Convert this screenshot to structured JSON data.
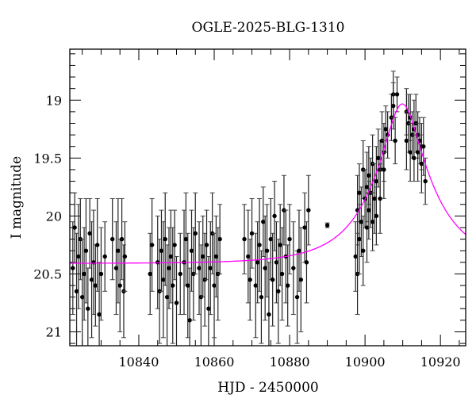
{
  "chart_data": {
    "type": "scatter",
    "title": "OGLE-2025-BLG-1310",
    "xlabel": "HJD - 2450000",
    "ylabel": "I magnitude",
    "xlim": [
      10821.7,
      10926.7
    ],
    "ylim": [
      21.12,
      18.56
    ],
    "y_inverted": true,
    "x_ticks": [
      10840,
      10860,
      10880,
      10900,
      10920
    ],
    "x_tick_labels": [
      "10840",
      "10860",
      "10880",
      "10900",
      "10920"
    ],
    "y_ticks": [
      19,
      19.5,
      20,
      20.5,
      21
    ],
    "y_tick_labels": [
      "19",
      "19.5",
      "20",
      "20.5",
      "21"
    ],
    "grid": false,
    "colors": {
      "points": "#000000",
      "model": "#ff00ff"
    },
    "model": {
      "type": "paczynski",
      "t0": 10909.9,
      "tE": 15.3,
      "u0": 0.29,
      "I_base": 20.41,
      "fs": 1.0
    },
    "points": [
      [
        10822.5,
        20.45,
        0.4
      ],
      [
        10823,
        20.1,
        0.3
      ],
      [
        10823.5,
        20.65,
        0.5
      ],
      [
        10824,
        20.35,
        0.45
      ],
      [
        10824.5,
        20.2,
        0.35
      ],
      [
        10825,
        20.7,
        0.5
      ],
      [
        10825.5,
        20.5,
        0.4
      ],
      [
        10826,
        20.3,
        0.45
      ],
      [
        10826.5,
        20.8,
        0.35
      ],
      [
        10827,
        20.15,
        0.3
      ],
      [
        10827.5,
        20.55,
        0.5
      ],
      [
        10828,
        20.4,
        0.45
      ],
      [
        10828.5,
        20.6,
        0.35
      ],
      [
        10829,
        20.25,
        0.4
      ],
      [
        10829.5,
        20.85,
        0.45
      ],
      [
        10830,
        20.5,
        0.4
      ],
      [
        10831,
        20.35,
        0.3
      ],
      [
        10833,
        20.2,
        0.35
      ],
      [
        10834,
        20.45,
        0.4
      ],
      [
        10834.5,
        20.3,
        0.45
      ],
      [
        10835,
        20.6,
        0.4
      ],
      [
        10835.5,
        20.2,
        0.35
      ],
      [
        10836,
        20.65,
        0.4
      ],
      [
        10836.3,
        20.35,
        0.3
      ],
      [
        10843,
        20.5,
        0.35
      ],
      [
        10843.5,
        20.25,
        0.4
      ],
      [
        10845,
        20.4,
        0.4
      ],
      [
        10845.5,
        20.65,
        0.45
      ],
      [
        10846,
        20.3,
        0.35
      ],
      [
        10846.5,
        20.55,
        0.5
      ],
      [
        10847,
        20.2,
        0.4
      ],
      [
        10847.5,
        20.7,
        0.45
      ],
      [
        10848,
        20.45,
        0.35
      ],
      [
        10848.5,
        20.35,
        0.4
      ],
      [
        10849,
        20.6,
        0.5
      ],
      [
        10849.5,
        20.25,
        0.3
      ],
      [
        10850,
        20.75,
        0.4
      ],
      [
        10851,
        20.5,
        0.35
      ],
      [
        10852,
        20.4,
        0.45
      ],
      [
        10852.5,
        20.2,
        0.4
      ],
      [
        10853,
        20.6,
        0.45
      ],
      [
        10853.5,
        20.9,
        0.45
      ],
      [
        10854,
        20.3,
        0.35
      ],
      [
        10854.5,
        20.5,
        0.4
      ],
      [
        10855,
        20.15,
        0.35
      ],
      [
        10856,
        20.45,
        0.4
      ],
      [
        10856.5,
        20.7,
        0.45
      ],
      [
        10857,
        20.35,
        0.35
      ],
      [
        10857.5,
        20.55,
        0.4
      ],
      [
        10858,
        20.25,
        0.3
      ],
      [
        10858.5,
        20.8,
        0.45
      ],
      [
        10859,
        20.45,
        0.4
      ],
      [
        10859.5,
        20.15,
        0.35
      ],
      [
        10860,
        20.6,
        0.45
      ],
      [
        10860.5,
        20.35,
        0.35
      ],
      [
        10861,
        20.5,
        0.4
      ],
      [
        10861.5,
        20.2,
        0.3
      ],
      [
        10868,
        20.2,
        0.3
      ],
      [
        10869,
        20.35,
        0.4
      ],
      [
        10869.5,
        20.55,
        0.35
      ],
      [
        10870,
        20.15,
        0.3
      ],
      [
        10871,
        20.6,
        0.45
      ],
      [
        10871.5,
        20.4,
        0.35
      ],
      [
        10872,
        20.25,
        0.4
      ],
      [
        10872.5,
        20.7,
        0.4
      ],
      [
        10873,
        20.05,
        0.3
      ],
      [
        10873.5,
        20.45,
        0.45
      ],
      [
        10874,
        20.3,
        0.4
      ],
      [
        10874.5,
        20.85,
        0.45
      ],
      [
        10875,
        20.2,
        0.35
      ],
      [
        10875.5,
        20.55,
        0.4
      ],
      [
        10876,
        20.0,
        0.3
      ],
      [
        10876.5,
        20.4,
        0.35
      ],
      [
        10877,
        20.65,
        0.45
      ],
      [
        10877.5,
        20.25,
        0.35
      ],
      [
        10878,
        20.5,
        0.4
      ],
      [
        10878.5,
        19.95,
        0.3
      ],
      [
        10879,
        20.35,
        0.4
      ],
      [
        10879.5,
        20.6,
        0.35
      ],
      [
        10880,
        20.2,
        0.3
      ],
      [
        10881,
        20.45,
        0.4
      ],
      [
        10882,
        20.7,
        0.4
      ],
      [
        10882.5,
        20.3,
        0.35
      ],
      [
        10883,
        20.55,
        0.45
      ],
      [
        10884,
        20.1,
        0.3
      ],
      [
        10884.5,
        20.4,
        0.35
      ],
      [
        10885,
        19.95,
        0.3
      ],
      [
        10890,
        20.08,
        0.02
      ],
      [
        10897.5,
        20.35,
        0.3
      ],
      [
        10898,
        19.95,
        0.3
      ],
      [
        10898,
        20.5,
        0.35
      ],
      [
        10898.5,
        19.8,
        0.25
      ],
      [
        10898.5,
        20.2,
        0.3
      ],
      [
        10899,
        20.05,
        0.3
      ],
      [
        10899.5,
        19.6,
        0.25
      ],
      [
        10899.5,
        20.3,
        0.3
      ],
      [
        10900,
        19.85,
        0.25
      ],
      [
        10900.5,
        19.75,
        0.3
      ],
      [
        10900.5,
        20.1,
        0.3
      ],
      [
        10901,
        19.65,
        0.25
      ],
      [
        10901,
        19.95,
        0.25
      ],
      [
        10901.5,
        19.8,
        0.3
      ],
      [
        10902,
        19.55,
        0.25
      ],
      [
        10902,
        20.05,
        0.25
      ],
      [
        10902.5,
        19.85,
        0.3
      ],
      [
        10903,
        19.7,
        0.3
      ],
      [
        10903,
        20.0,
        0.25
      ],
      [
        10903.5,
        19.5,
        0.25
      ],
      [
        10904,
        19.6,
        0.25
      ],
      [
        10904,
        19.85,
        0.3
      ],
      [
        10904.5,
        19.35,
        0.25
      ],
      [
        10905,
        19.45,
        0.25
      ],
      [
        10905,
        19.6,
        0.25
      ],
      [
        10905.5,
        19.25,
        0.2
      ],
      [
        10906,
        19.3,
        0.2
      ],
      [
        10907,
        19.15,
        0.2
      ],
      [
        10907.5,
        18.95,
        0.2
      ],
      [
        10907.5,
        19.05,
        0.2
      ],
      [
        10908,
        19.35,
        0.2
      ],
      [
        10908.5,
        18.95,
        0.15
      ],
      [
        10911,
        19.1,
        0.2
      ],
      [
        10911,
        19.35,
        0.25
      ],
      [
        10911.5,
        19.2,
        0.25
      ],
      [
        10912,
        19.15,
        0.2
      ],
      [
        10912,
        19.45,
        0.25
      ],
      [
        10912.5,
        19.3,
        0.2
      ],
      [
        10913,
        19.25,
        0.25
      ],
      [
        10913,
        19.5,
        0.2
      ],
      [
        10913.5,
        19.2,
        0.25
      ],
      [
        10914,
        19.3,
        0.2
      ],
      [
        10914,
        19.45,
        0.25
      ],
      [
        10914.5,
        19.35,
        0.2
      ],
      [
        10915,
        19.4,
        0.2
      ],
      [
        10915,
        19.55,
        0.25
      ],
      [
        10915.5,
        19.4,
        0.25
      ],
      [
        10916,
        19.7,
        0.2
      ]
    ]
  }
}
